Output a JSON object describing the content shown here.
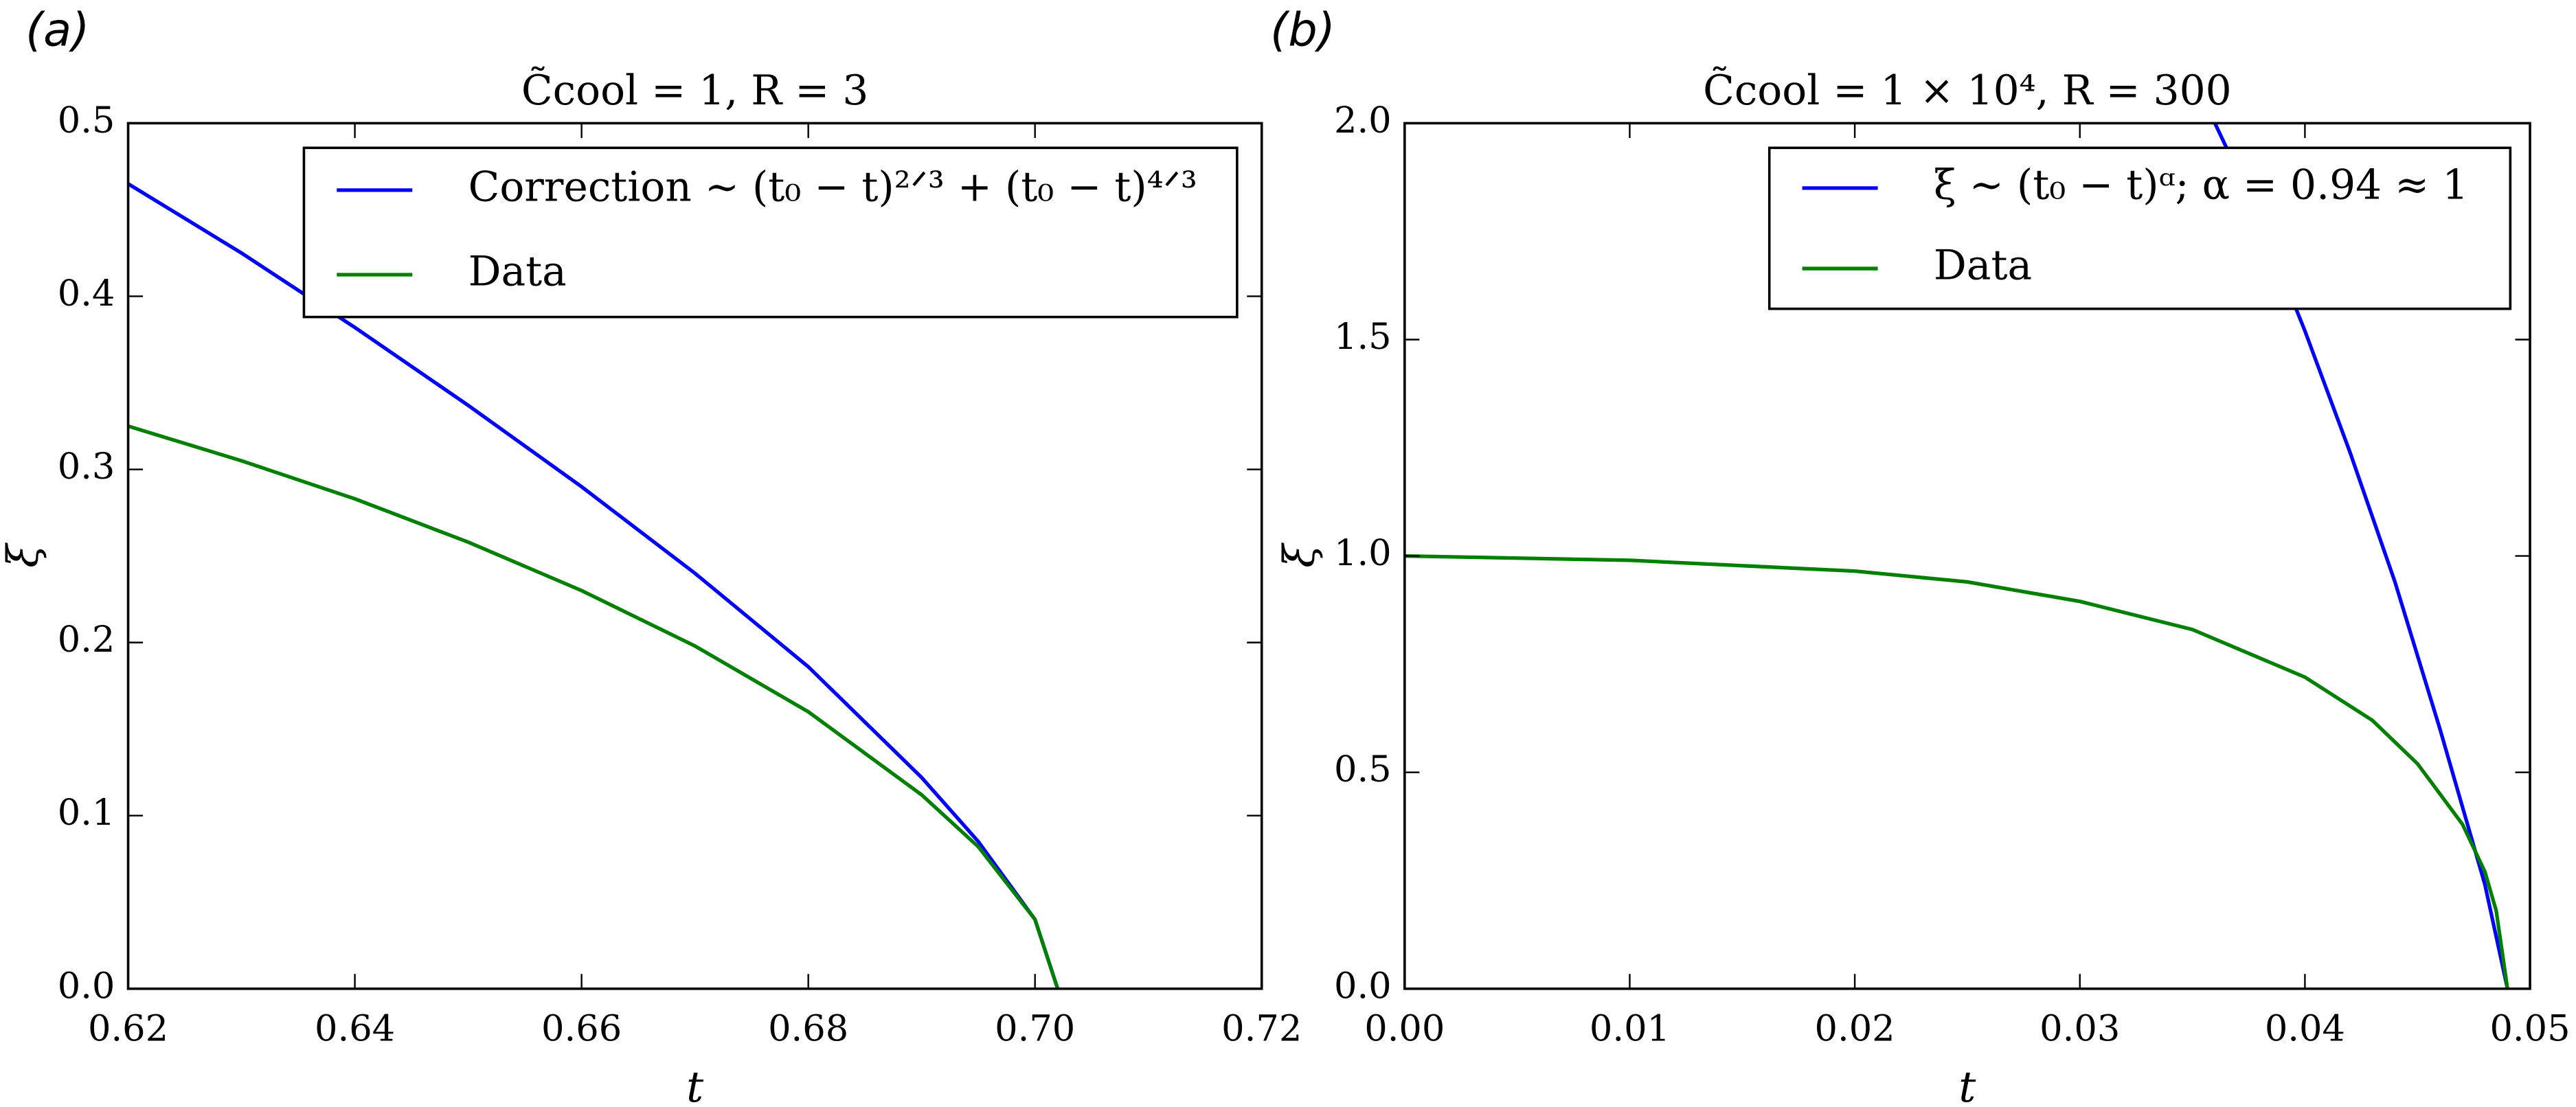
{
  "chart_data": [
    {
      "type": "line",
      "panel_label": "(a)",
      "title": "C̃cool = 1, R = 3",
      "xlabel": "t",
      "ylabel": "ξ",
      "xlim": [
        0.62,
        0.72
      ],
      "ylim": [
        0,
        0.5
      ],
      "xticks": [
        0.62,
        0.64,
        0.66,
        0.68,
        {
          "value": 0.7,
          "label": "0.70"
        },
        0.72
      ],
      "yticks": [
        {
          "value": 0,
          "label": "0.0"
        },
        0.1,
        0.2,
        0.3,
        0.4,
        0.5
      ],
      "series": [
        {
          "name": "Correction ∼ (t₀ − t)²ᐟ³ + (t₀ − t)⁴ᐟ³",
          "color": "#0000ff",
          "x": [
            0.62,
            0.63,
            0.64,
            0.65,
            0.66,
            0.67,
            0.68,
            0.69,
            0.695,
            0.7,
            0.702
          ],
          "values": [
            0.465,
            0.425,
            0.382,
            0.337,
            0.29,
            0.24,
            0.186,
            0.122,
            0.085,
            0.04,
            0
          ]
        },
        {
          "name": "Data",
          "color": "#008000",
          "x": [
            0.62,
            0.63,
            0.64,
            0.65,
            0.66,
            0.67,
            0.68,
            0.69,
            0.695,
            0.7,
            0.702
          ],
          "values": [
            0.325,
            0.305,
            0.283,
            0.258,
            0.23,
            0.198,
            0.16,
            0.112,
            0.082,
            0.04,
            0
          ]
        }
      ]
    },
    {
      "type": "line",
      "panel_label": "(b)",
      "title": "C̃cool = 1 × 10⁴, R = 300",
      "xlabel": "t",
      "ylabel": "ξ",
      "xlim": [
        0,
        0.05
      ],
      "ylim": [
        0,
        2
      ],
      "xticks": [
        {
          "value": 0,
          "label": "0.00"
        },
        0.01,
        0.02,
        0.03,
        0.04,
        0.05
      ],
      "yticks": [
        {
          "value": 0,
          "label": "0.0"
        },
        0.5,
        {
          "value": 1,
          "label": "1.0"
        },
        1.5,
        {
          "value": 2,
          "label": "2.0"
        }
      ],
      "series": [
        {
          "name": "ξ ∼ (t₀ − t)ᵅ; α = 0.94 ≈ 1",
          "color": "#0000ff",
          "x": [
            0.036,
            0.038,
            0.04,
            0.042,
            0.044,
            0.046,
            0.048,
            0.049
          ],
          "values": [
            2.0,
            1.78,
            1.52,
            1.24,
            0.94,
            0.6,
            0.24,
            0
          ]
        },
        {
          "name": "Data",
          "color": "#008000",
          "x": [
            0,
            0.01,
            0.02,
            0.025,
            0.03,
            0.035,
            0.04,
            0.043,
            0.045,
            0.047,
            0.048,
            0.0485,
            0.049
          ],
          "values": [
            1.0,
            0.99,
            0.965,
            0.94,
            0.895,
            0.83,
            0.72,
            0.62,
            0.52,
            0.38,
            0.27,
            0.18,
            0
          ]
        }
      ]
    }
  ]
}
